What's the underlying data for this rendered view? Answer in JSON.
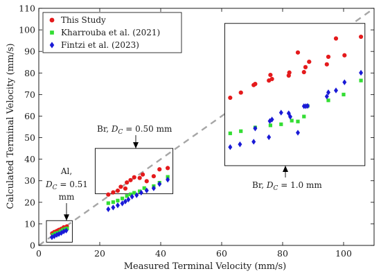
{
  "chart_data": {
    "type": "scatter",
    "xlabel": "Measured Terminal Velocity (mm/s)",
    "ylabel": "Calculated Terminal Velocity (mm/s)",
    "xlim": [
      0,
      110
    ],
    "ylim": [
      0,
      110
    ],
    "xticks": [
      0,
      20,
      40,
      60,
      80,
      100
    ],
    "yticks": [
      0,
      10,
      20,
      30,
      40,
      50,
      60,
      70,
      80,
      90,
      100,
      110
    ],
    "grid": false,
    "legend_position": "top-left",
    "reference_line": {
      "style": "dashed",
      "color": "#a6a6a6",
      "from": [
        0,
        0
      ],
      "to": [
        110,
        110
      ]
    },
    "series": [
      {
        "name": "This Study",
        "marker": "circle",
        "color": "#e41a1c",
        "points": [
          [
            4.4,
            5.6
          ],
          [
            5.1,
            6.2
          ],
          [
            5.9,
            6.7
          ],
          [
            6.6,
            7.2
          ],
          [
            7.4,
            7.7
          ],
          [
            8.2,
            8.4
          ],
          [
            9.2,
            8.8
          ],
          [
            22.8,
            23.6
          ],
          [
            24.4,
            24.6
          ],
          [
            25.9,
            25.4
          ],
          [
            26.9,
            27.2
          ],
          [
            28.4,
            26.4
          ],
          [
            28.9,
            29.2
          ],
          [
            30.1,
            30.3
          ],
          [
            31.3,
            31.6
          ],
          [
            33.1,
            31.3
          ],
          [
            34.1,
            32.9
          ],
          [
            35.4,
            29.8
          ],
          [
            37.7,
            32.1
          ],
          [
            39.6,
            35.3
          ],
          [
            42.3,
            35.9
          ]
        ]
      },
      {
        "name": "Kharrouba et al. (2021)",
        "marker": "square",
        "color": "#33dd33",
        "points": [
          [
            4.6,
            4.9
          ],
          [
            5.4,
            5.6
          ],
          [
            6.3,
            5.9
          ],
          [
            7.1,
            6.6
          ],
          [
            7.9,
            7.3
          ],
          [
            8.7,
            7.7
          ],
          [
            9.3,
            7.9
          ],
          [
            22.8,
            19.6
          ],
          [
            24.4,
            20.1
          ],
          [
            25.9,
            20.8
          ],
          [
            27.4,
            21.8
          ],
          [
            28.9,
            22.9
          ],
          [
            30.1,
            23.7
          ],
          [
            31.3,
            24.4
          ],
          [
            33.1,
            25.1
          ],
          [
            34.6,
            26.6
          ],
          [
            37.7,
            27.5
          ],
          [
            39.6,
            29.1
          ],
          [
            42.3,
            31.8
          ]
        ]
      },
      {
        "name": "Fintzi et al. (2023)",
        "marker": "diamond",
        "color": "#1a1ad6",
        "points": [
          [
            4.3,
            3.8
          ],
          [
            5.1,
            4.3
          ],
          [
            5.9,
            4.9
          ],
          [
            6.6,
            5.3
          ],
          [
            7.4,
            5.8
          ],
          [
            8.2,
            6.5
          ],
          [
            9.0,
            6.9
          ],
          [
            22.8,
            16.8
          ],
          [
            24.4,
            17.6
          ],
          [
            25.9,
            18.6
          ],
          [
            27.4,
            19.5
          ],
          [
            28.4,
            20.4
          ],
          [
            29.4,
            21.3
          ],
          [
            30.6,
            22.6
          ],
          [
            32.1,
            23.3
          ],
          [
            33.6,
            24.5
          ],
          [
            35.4,
            25.5
          ],
          [
            37.7,
            26.5
          ],
          [
            39.6,
            28.5
          ],
          [
            42.3,
            30.5
          ]
        ]
      }
    ],
    "inset": {
      "x_range": [
        61,
        107
      ],
      "y_range": [
        37,
        103
      ],
      "series_points": {
        "This Study": [
          [
            62.8,
            68.5
          ],
          [
            66.3,
            70.9
          ],
          [
            70.5,
            74.4
          ],
          [
            71.0,
            74.9
          ],
          [
            75.5,
            76.5
          ],
          [
            76.0,
            79.1
          ],
          [
            76.5,
            77.2
          ],
          [
            82.0,
            78.8
          ],
          [
            82.2,
            80.2
          ],
          [
            85.0,
            89.5
          ],
          [
            87.0,
            80.4
          ],
          [
            87.5,
            82.7
          ],
          [
            88.7,
            85.2
          ],
          [
            94.5,
            84.0
          ],
          [
            95.0,
            87.5
          ],
          [
            97.5,
            96.0
          ],
          [
            100.3,
            88.2
          ],
          [
            105.7,
            96.8
          ]
        ],
        "Kharrouba et al. (2021)": [
          [
            62.8,
            52.0
          ],
          [
            66.3,
            53.0
          ],
          [
            71.0,
            54.7
          ],
          [
            76.0,
            55.7
          ],
          [
            79.5,
            56.2
          ],
          [
            83.0,
            57.9
          ],
          [
            85.0,
            57.5
          ],
          [
            87.0,
            59.8
          ],
          [
            88.2,
            64.7
          ],
          [
            95.0,
            67.3
          ],
          [
            100.0,
            70.0
          ],
          [
            105.7,
            76.5
          ]
        ],
        "Fintzi et al. (2023)": [
          [
            62.8,
            45.6
          ],
          [
            66.0,
            46.9
          ],
          [
            70.5,
            48.1
          ],
          [
            71.0,
            54.3
          ],
          [
            75.5,
            50.2
          ],
          [
            75.8,
            57.7
          ],
          [
            76.5,
            58.4
          ],
          [
            79.5,
            61.6
          ],
          [
            82.0,
            61.3
          ],
          [
            82.5,
            59.7
          ],
          [
            85.0,
            52.3
          ],
          [
            87.0,
            64.6
          ],
          [
            87.6,
            64.6
          ],
          [
            88.2,
            64.7
          ],
          [
            94.5,
            69.1
          ],
          [
            95.0,
            71.0
          ],
          [
            97.5,
            71.9
          ],
          [
            100.3,
            75.7
          ],
          [
            105.7,
            80.1
          ]
        ]
      }
    },
    "annotations": [
      {
        "text": "Br, D_C = 0.50 mm",
        "target_region": [
          [
            18.5,
            24
          ],
          [
            44,
            45
          ]
        ]
      },
      {
        "text": "Al, D_C = 0.51 mm",
        "target_region": [
          [
            2.5,
            1.5
          ],
          [
            11,
            11.5
          ]
        ]
      },
      {
        "text": "Br, D_C = 1.0 mm",
        "target_region": [
          [
            61,
            37
          ],
          [
            107,
            103
          ]
        ]
      }
    ]
  },
  "legend": {
    "entries": [
      "This Study",
      "Kharrouba et al. (2021)",
      "Fintzi et al. (2023)"
    ]
  },
  "annotation_labels": {
    "br050": {
      "line1": "Br, ",
      "sym": "D",
      "sub": "C",
      "rest": " = 0.50 mm"
    },
    "al051": {
      "line1": "Al,",
      "sym": "D",
      "sub": "C",
      "rest": " = 0.51",
      "line3": "mm"
    },
    "br10": {
      "line1": "Br, ",
      "sym": "D",
      "sub": "C",
      "rest": " = 1.0 mm"
    }
  }
}
